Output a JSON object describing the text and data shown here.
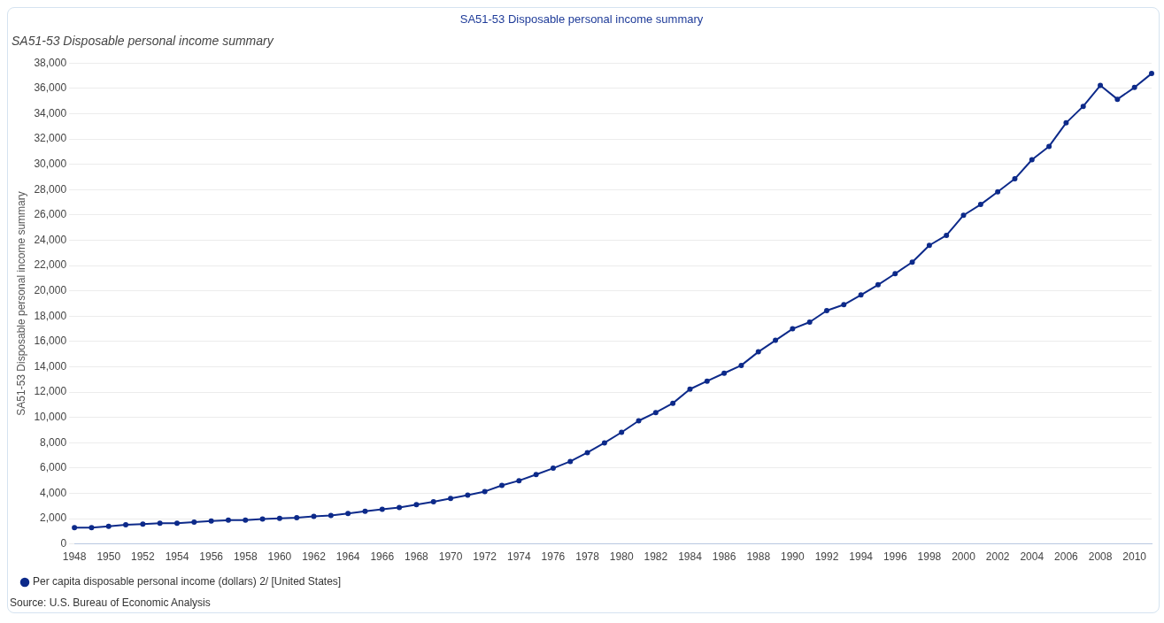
{
  "chart_data": {
    "type": "line",
    "title": "SA51-53 Disposable personal income summary",
    "subtitle": "SA51-53 Disposable personal income summary",
    "ylabel": "SA51-53 Disposable personal income summary",
    "categories": [
      "1948",
      null,
      "1950",
      null,
      "1952",
      null,
      "1954",
      null,
      "1956",
      null,
      "1958",
      null,
      "1960",
      null,
      "1962",
      null,
      "1964",
      null,
      "1966",
      null,
      "1968",
      null,
      "1970",
      null,
      "1972",
      null,
      "1974",
      null,
      "1976",
      null,
      "1978",
      null,
      "1980",
      null,
      "1982",
      null,
      "1984",
      null,
      "1986",
      null,
      "1988",
      null,
      "1990",
      null,
      "1992",
      null,
      "1994",
      null,
      "1996",
      null,
      "1998",
      null,
      "2000",
      null,
      "2002",
      null,
      "2004",
      null,
      "2006",
      null,
      "2008",
      null,
      "2010",
      null
    ],
    "series": [
      {
        "name": "Per capita disposable personal income (dollars) 2/ [United States]",
        "color": "#0d2a8a",
        "values": [
          1290,
          1280,
          1390,
          1510,
          1560,
          1630,
          1640,
          1720,
          1800,
          1870,
          1880,
          1970,
          2020,
          2070,
          2170,
          2240,
          2400,
          2570,
          2740,
          2880,
          3110,
          3330,
          3590,
          3860,
          4140,
          4620,
          5000,
          5480,
          5980,
          6520,
          7220,
          7990,
          8820,
          9730,
          10380,
          11120,
          12230,
          12870,
          13490,
          14110,
          15180,
          16090,
          17000,
          17530,
          18440,
          18910,
          19680,
          20480,
          21360,
          22270,
          23600,
          24390,
          25980,
          26830,
          27830,
          28860,
          30370,
          31420,
          33280,
          34590,
          36240,
          35150,
          36080,
          37180
        ]
      }
    ],
    "ylim": [
      0,
      38000
    ],
    "yticks": [
      0,
      {
        "value": 2000,
        "label": "2,000"
      },
      {
        "value": 4000,
        "label": "4,000"
      },
      {
        "value": 6000,
        "label": "6,000"
      },
      {
        "value": 8000,
        "label": "8,000"
      },
      {
        "value": 10000,
        "label": "10,000"
      },
      {
        "value": 12000,
        "label": "12,000"
      },
      {
        "value": 14000,
        "label": "14,000"
      },
      {
        "value": 16000,
        "label": "16,000"
      },
      {
        "value": 18000,
        "label": "18,000"
      },
      {
        "value": 20000,
        "label": "20,000"
      },
      {
        "value": 22000,
        "label": "22,000"
      },
      {
        "value": 24000,
        "label": "24,000"
      },
      {
        "value": 26000,
        "label": "26,000"
      },
      {
        "value": 28000,
        "label": "28,000"
      },
      {
        "value": 30000,
        "label": "30,000"
      },
      {
        "value": 32000,
        "label": "32,000"
      },
      {
        "value": 34000,
        "label": "34,000"
      },
      {
        "value": 36000,
        "label": "36,000"
      },
      {
        "value": 38000,
        "label": "38,000"
      }
    ],
    "grid": "y",
    "legend": "bottom left",
    "marker": "circle",
    "line_style": "solid",
    "annotations": [
      "Source: U.S. Bureau of Economic Analysis"
    ]
  }
}
